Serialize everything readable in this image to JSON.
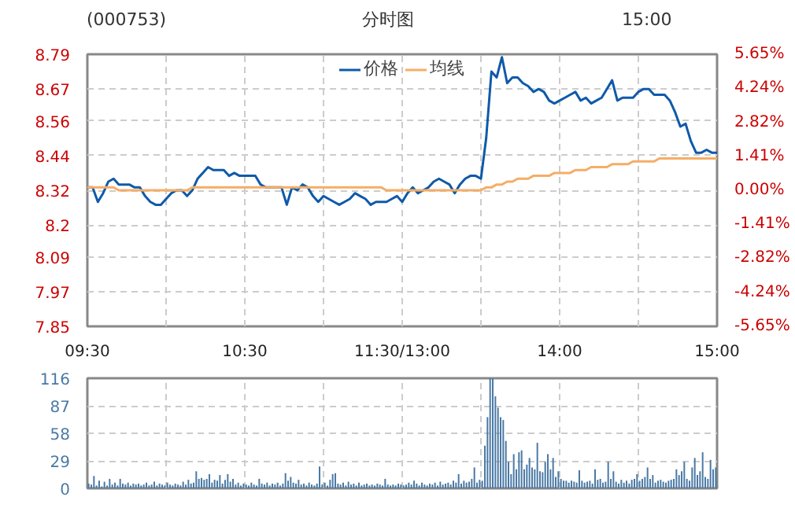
{
  "chart_data": [
    {
      "type": "line",
      "title": "(000753)",
      "subtitle": "分时图",
      "annotations": [
        "15:00"
      ],
      "legend": "top",
      "grid": true,
      "categories": [
        "09:30",
        null,
        null,
        null,
        null,
        null,
        null,
        null,
        null,
        null,
        null,
        null,
        null,
        null,
        null,
        null,
        null,
        null,
        null,
        null,
        null,
        null,
        null,
        null,
        null,
        null,
        null,
        null,
        null,
        null,
        "10:30",
        null,
        null,
        null,
        null,
        null,
        null,
        null,
        null,
        null,
        null,
        null,
        null,
        null,
        null,
        null,
        null,
        null,
        null,
        null,
        null,
        null,
        null,
        null,
        null,
        null,
        null,
        null,
        null,
        null,
        "11:30/13:00",
        null,
        null,
        null,
        null,
        null,
        null,
        null,
        null,
        null,
        null,
        null,
        null,
        null,
        null,
        null,
        null,
        null,
        null,
        null,
        null,
        null,
        null,
        null,
        null,
        null,
        null,
        null,
        null,
        null,
        "14:00",
        null,
        null,
        null,
        null,
        null,
        null,
        null,
        null,
        null,
        null,
        null,
        null,
        null,
        null,
        null,
        null,
        null,
        null,
        null,
        null,
        null,
        null,
        null,
        null,
        null,
        null,
        null,
        null,
        null,
        "15:00"
      ],
      "ylim": [
        7.85,
        8.79
      ],
      "yticks": [
        7.85,
        7.97,
        8.09,
        8.2,
        8.32,
        8.44,
        8.56,
        8.67,
        8.79
      ],
      "y2lim": [
        -5.65,
        5.65
      ],
      "y2ticks": [
        {
          "value": -5.65,
          "label": "-5.65%"
        },
        {
          "value": -4.24,
          "label": "-4.24%"
        },
        {
          "value": -2.82,
          "label": "-2.82%"
        },
        {
          "value": -1.41,
          "label": "-1.41%"
        },
        {
          "value": 0,
          "label": "0.00%"
        },
        {
          "value": 1.41,
          "label": "1.41%"
        },
        {
          "value": 2.82,
          "label": "2.82%"
        },
        {
          "value": 4.24,
          "label": "4.24%"
        },
        {
          "value": 5.65,
          "label": "5.65%"
        }
      ],
      "series": [
        {
          "name": "价格",
          "color": "#0f5aa8",
          "values": [
            8.33,
            8.33,
            8.28,
            8.31,
            8.35,
            8.36,
            8.34,
            8.34,
            8.34,
            8.33,
            8.33,
            8.3,
            8.28,
            8.27,
            8.27,
            8.29,
            8.31,
            8.32,
            8.32,
            8.3,
            8.32,
            8.36,
            8.38,
            8.4,
            8.39,
            8.39,
            8.39,
            8.37,
            8.38,
            8.37,
            8.37,
            8.37,
            8.37,
            8.34,
            8.33,
            8.33,
            8.33,
            8.33,
            8.27,
            8.33,
            8.32,
            8.34,
            8.33,
            8.3,
            8.28,
            8.3,
            8.29,
            8.28,
            8.27,
            8.28,
            8.29,
            8.31,
            8.3,
            8.29,
            8.27,
            8.28,
            8.28,
            8.28,
            8.29,
            8.3,
            8.28,
            8.31,
            8.33,
            8.31,
            8.32,
            8.33,
            8.35,
            8.36,
            8.35,
            8.34,
            8.31,
            8.34,
            8.36,
            8.37,
            8.37,
            8.36,
            8.5,
            8.73,
            8.71,
            8.78,
            8.69,
            8.71,
            8.71,
            8.69,
            8.68,
            8.66,
            8.67,
            8.66,
            8.63,
            8.62,
            8.63,
            8.64,
            8.65,
            8.66,
            8.63,
            8.64,
            8.62,
            8.63,
            8.64,
            8.67,
            8.7,
            8.63,
            8.64,
            8.64,
            8.64,
            8.66,
            8.67,
            8.67,
            8.65,
            8.65,
            8.65,
            8.63,
            8.59,
            8.54,
            8.55,
            8.49,
            8.45,
            8.45,
            8.46,
            8.45,
            8.45
          ]
        },
        {
          "name": "均线",
          "color": "#f5ad66",
          "values": [
            8.33,
            8.33,
            8.33,
            8.33,
            8.33,
            8.33,
            8.32,
            8.32,
            8.32,
            8.32,
            8.32,
            8.32,
            8.32,
            8.32,
            8.32,
            8.32,
            8.32,
            8.32,
            8.32,
            8.32,
            8.33,
            8.33,
            8.33,
            8.33,
            8.33,
            8.33,
            8.33,
            8.33,
            8.33,
            8.33,
            8.33,
            8.33,
            8.33,
            8.33,
            8.33,
            8.33,
            8.33,
            8.33,
            8.33,
            8.33,
            8.33,
            8.33,
            8.33,
            8.33,
            8.33,
            8.33,
            8.33,
            8.33,
            8.33,
            8.33,
            8.33,
            8.33,
            8.33,
            8.33,
            8.33,
            8.33,
            8.33,
            8.32,
            8.32,
            8.32,
            8.32,
            8.32,
            8.32,
            8.32,
            8.32,
            8.32,
            8.32,
            8.32,
            8.32,
            8.32,
            8.32,
            8.32,
            8.32,
            8.32,
            8.32,
            8.32,
            8.33,
            8.33,
            8.34,
            8.34,
            8.35,
            8.35,
            8.36,
            8.36,
            8.36,
            8.37,
            8.37,
            8.37,
            8.37,
            8.38,
            8.38,
            8.38,
            8.38,
            8.39,
            8.39,
            8.39,
            8.4,
            8.4,
            8.4,
            8.4,
            8.41,
            8.41,
            8.41,
            8.41,
            8.42,
            8.42,
            8.42,
            8.42,
            8.42,
            8.43,
            8.43,
            8.43,
            8.43,
            8.43,
            8.43,
            8.43,
            8.43,
            8.43,
            8.43,
            8.43,
            8.43
          ]
        }
      ]
    },
    {
      "type": "bar",
      "grid": true,
      "color": "#4a79a5",
      "categories": [
        null,
        null,
        null,
        null,
        null,
        null,
        null,
        null,
        null,
        null,
        null,
        null,
        null,
        null,
        null,
        null,
        null,
        null,
        null,
        null,
        null,
        null,
        null,
        null,
        null,
        null,
        null,
        null,
        null,
        null,
        null,
        null,
        null,
        null,
        null,
        null,
        null,
        null,
        null,
        null,
        null,
        null,
        null,
        null,
        null,
        null,
        null,
        null,
        null,
        null,
        null,
        null,
        null,
        null,
        null,
        null,
        null,
        null,
        null,
        null,
        null,
        null,
        null,
        null,
        null,
        null,
        null,
        null,
        null,
        null,
        null,
        null,
        null,
        null,
        null,
        null,
        null,
        null,
        null,
        null,
        null,
        null,
        null,
        null,
        null,
        null,
        null,
        null,
        null,
        null,
        null,
        null,
        null,
        null,
        null,
        null,
        null,
        null,
        null,
        null,
        null,
        null,
        null,
        null,
        null,
        null,
        null,
        null,
        null,
        null,
        null,
        null,
        null,
        null,
        null,
        null,
        null,
        null,
        null,
        null,
        null,
        null,
        null,
        null,
        null,
        null,
        null,
        null,
        null,
        null,
        null,
        null,
        null,
        null,
        null,
        null,
        null,
        null,
        null,
        null,
        null,
        null,
        null,
        null,
        null,
        null,
        null,
        null,
        null,
        null,
        null,
        null,
        null,
        null,
        null,
        null,
        null,
        null,
        null,
        null,
        null,
        null,
        null,
        null,
        null,
        null,
        null,
        null,
        null,
        null,
        null,
        null,
        null,
        null,
        null,
        null,
        null,
        null,
        null,
        null,
        null,
        null,
        null,
        null,
        null,
        null,
        null,
        null,
        null,
        null,
        null,
        null,
        null,
        null,
        null,
        null,
        null,
        null,
        null,
        null,
        null,
        null,
        null,
        null,
        null,
        null,
        null,
        null,
        null,
        null,
        null,
        null,
        null,
        null,
        null,
        null,
        null,
        null,
        null,
        null,
        null,
        null,
        null,
        null,
        null,
        null,
        null,
        null,
        null,
        null,
        null,
        null,
        null,
        null,
        null,
        null,
        null,
        null,
        null,
        null
      ],
      "ylim": [
        0,
        116
      ],
      "yticks": [
        0,
        29,
        58,
        87,
        116
      ],
      "values": [
        5,
        4,
        13,
        3,
        8,
        2,
        7,
        3,
        10,
        4,
        6,
        3,
        10,
        5,
        4,
        6,
        3,
        5,
        4,
        5,
        3,
        4,
        6,
        3,
        4,
        7,
        3,
        5,
        4,
        3,
        6,
        4,
        3,
        5,
        4,
        3,
        7,
        4,
        9,
        5,
        6,
        18,
        10,
        11,
        9,
        10,
        15,
        6,
        9,
        8,
        14,
        5,
        9,
        15,
        7,
        10,
        4,
        6,
        3,
        5,
        4,
        3,
        6,
        4,
        3,
        10,
        5,
        4,
        6,
        3,
        5,
        4,
        6,
        3,
        5,
        16,
        8,
        12,
        6,
        5,
        9,
        4,
        5,
        3,
        6,
        4,
        3,
        5,
        23,
        4,
        6,
        3,
        9,
        15,
        16,
        5,
        4,
        6,
        3,
        7,
        4,
        5,
        3,
        6,
        3,
        4,
        5,
        3,
        4,
        3,
        5,
        4,
        3,
        10,
        4,
        3,
        4,
        3,
        5,
        4,
        3,
        4,
        6,
        4,
        8,
        5,
        3,
        6,
        4,
        3,
        5,
        4,
        6,
        3,
        7,
        4,
        5,
        6,
        4,
        8,
        6,
        15,
        5,
        8,
        6,
        7,
        10,
        22,
        6,
        9,
        8,
        45,
        75,
        116,
        116,
        97,
        85,
        75,
        72,
        50,
        28,
        15,
        36,
        20,
        38,
        40,
        20,
        25,
        32,
        22,
        20,
        48,
        18,
        17,
        28,
        36,
        20,
        32,
        12,
        18,
        10,
        8,
        8,
        6,
        8,
        7,
        6,
        19,
        8,
        6,
        7,
        8,
        5,
        20,
        9,
        10,
        6,
        7,
        28,
        10,
        18,
        7,
        5,
        9,
        6,
        8,
        5,
        9,
        10,
        15,
        8,
        10,
        12,
        22,
        10,
        14,
        6,
        8,
        9,
        7,
        6,
        8,
        9,
        10,
        20,
        14,
        18,
        28,
        10,
        8,
        22,
        32,
        14,
        18,
        38,
        12,
        10,
        30,
        20,
        22
      ]
    }
  ]
}
